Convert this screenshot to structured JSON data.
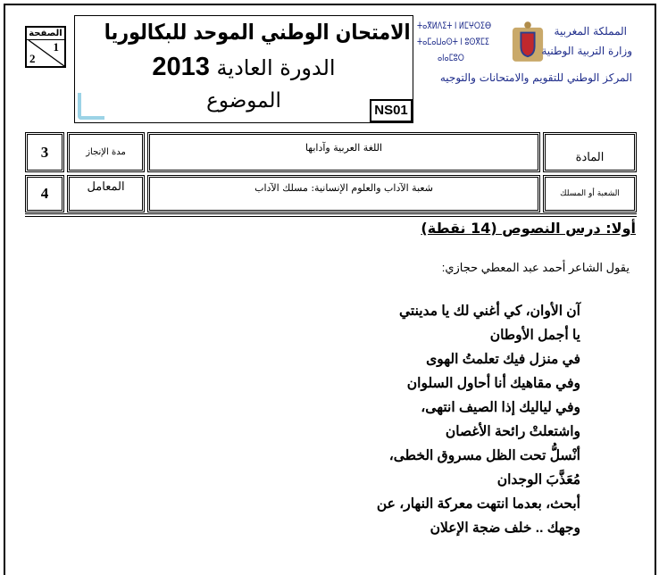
{
  "header": {
    "page_label": "الصفحة",
    "page_current": "1",
    "page_total": "2",
    "title": "الامتحان الوطني الموحد للبكالوريا",
    "session": "الدورة العادية",
    "year": "2013",
    "subtitle": "الموضوع",
    "code": "NS01"
  },
  "ministry": {
    "line1": "المملكة المغربية",
    "line2": "وزارة التربية الوطنية",
    "line3": "المركز الوطني للتقويم والامتحانات والتوجيه",
    "tifinagh1": "ⵜⴰⴳⵍⴷⵉⵜ ⵏ ⵍⵎⵖⵔⵉⴱ",
    "tifinagh2": "ⵜⴰⵎⴰⵡⴰⵙⵜ ⵏ ⵓⵙⴳⵎⵉ",
    "tifinagh3": "ⴰⵏⴰⵎⵓⵔ",
    "emblem": "coat-of-arms",
    "colors": {
      "ink": "#1d2b8a",
      "emblem_red": "#c0282d"
    }
  },
  "info_table": {
    "row1": {
      "label": "المادة",
      "value": "اللغة العربية وآدابها",
      "meta_label": "مدة الإنجاز",
      "meta_value": "3"
    },
    "row2": {
      "label": "الشعبة أو المسلك",
      "value": "شعبة الآداب والعلوم الإنسانية: مسلك الآداب",
      "meta_label": "المعامل",
      "meta_value": "4"
    }
  },
  "section": {
    "heading": "أولا: درس النصوص (14 نقطة)",
    "intro": "يقول الشاعر أحمد عبد المعطي حجازي:",
    "poem": [
      "آن الأوان، كي أغني لك يا مدينتي",
      "يا أجمل الأوطان",
      "في منزل فيك تعلمتُ الهوى",
      "وفي مقاهيك أنا أحاول السلوان",
      "وفي لياليك إذا الصيف انتهى،",
      "واشتعلتْ رائحة الأغصان",
      "أنْسلُّ تحت الظل مسروق الخطى،",
      "مُعَذَّبَ الوجدان",
      "أبحث، بعدما انتهت معركة النهار، عن",
      "وجهك .. خلف ضجة الإعلان"
    ]
  }
}
